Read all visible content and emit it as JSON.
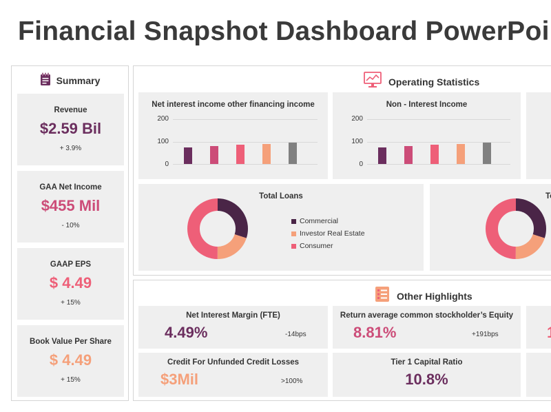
{
  "title": "Financial Snapshot Dashboard PowerPoint",
  "colors": {
    "plum": "#6b2e5e",
    "rose": "#cc4c78",
    "coral": "#ee5f78",
    "peach": "#f5a07a",
    "dark_plum": "#4a2547",
    "gray": "#808080"
  },
  "summary": {
    "label": "Summary",
    "icon": "notepad-icon",
    "cards": [
      {
        "label": "Revenue",
        "value": "$2.59 Bil",
        "change": "+ 3.9%"
      },
      {
        "label": "GAA Net Income",
        "value": "$455 Mil",
        "change": "- 10%"
      },
      {
        "label": "GAAP EPS",
        "value": "$ 4.49",
        "change": "+ 15%"
      },
      {
        "label": "Book Value Per Share",
        "value": "$ 4.49",
        "change": "+ 15%"
      }
    ]
  },
  "operating": {
    "label": "Operating Statistics",
    "icon": "monitor-chart-icon",
    "charts": {
      "chart_data": [
        {
          "type": "bar",
          "title": "Net interest income other financing income",
          "ylim": [
            0,
            200
          ],
          "yticks": [
            "200",
            "100",
            "0"
          ],
          "values": [
            75,
            80,
            85,
            90,
            95
          ]
        },
        {
          "type": "bar",
          "title": "Non - Interest Income",
          "ylim": [
            0,
            200
          ],
          "yticks": [
            "200",
            "100",
            "0"
          ],
          "values": [
            75,
            80,
            85,
            90,
            95
          ]
        },
        {
          "type": "pie",
          "title": "Total Loans",
          "categories": [
            "Commercial",
            "Investor Real Estate",
            "Consumer"
          ],
          "values": [
            30,
            20,
            50
          ]
        }
      ]
    },
    "partial_title": "To"
  },
  "highlights": {
    "label": "Other Highlights",
    "icon": "list-icon",
    "items": [
      {
        "label": "Net Interest Margin (FTE)",
        "value": "4.49%",
        "change": "-14bps"
      },
      {
        "label": "Return average common stockholder’s Equity",
        "value": "8.81%",
        "change": "+191bps"
      },
      {
        "label": "Credit For Unfunded Credit Losses",
        "value": "$3Mil",
        "change": ">100%"
      },
      {
        "label": "Tier 1 Capital Ratio",
        "value": "10.8%",
        "change": ""
      }
    ],
    "partial_value": "1"
  }
}
